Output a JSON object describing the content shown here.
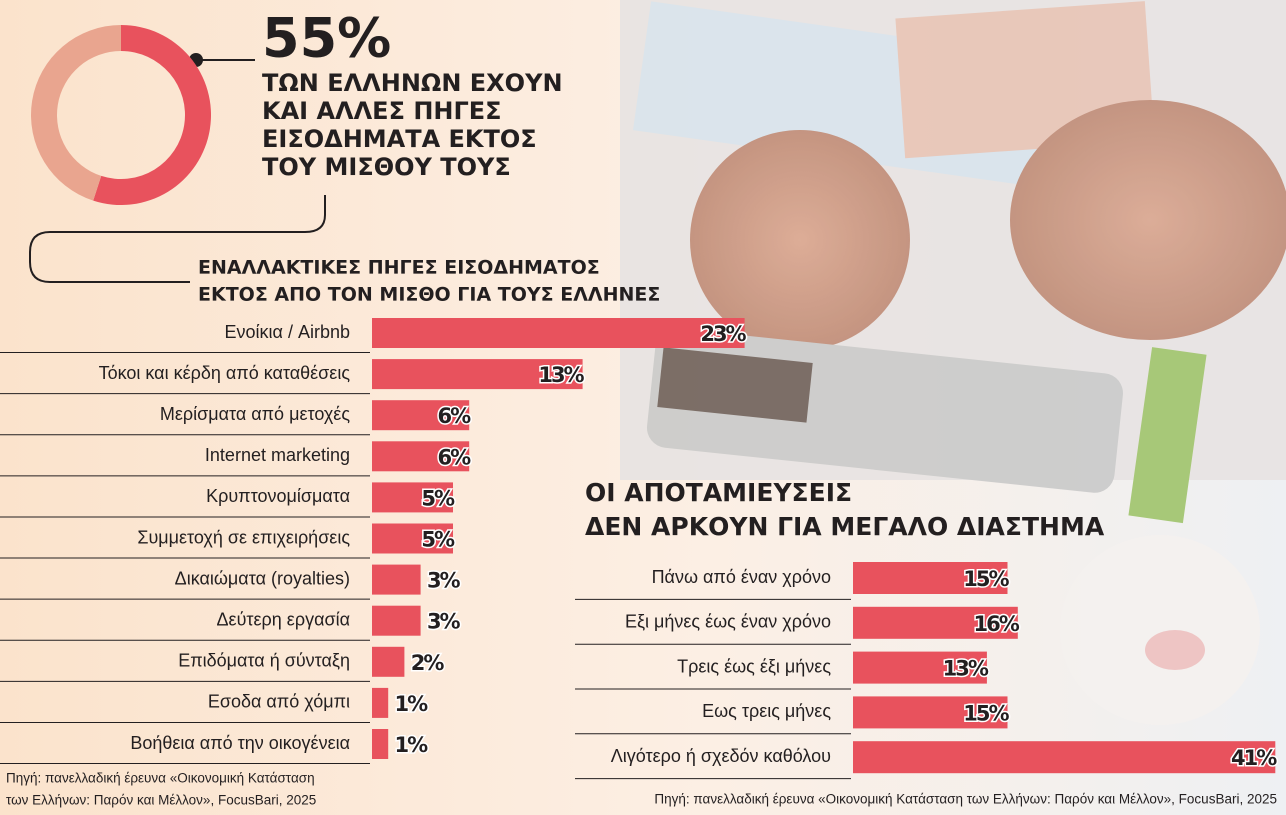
{
  "chart_data": [
    {
      "type": "pie",
      "title": "55%",
      "subtitle": [
        "ΤΩΝ ΕΛΛΗΝΩΝ ΕΧΟΥΝ",
        "ΚΑΙ ΑΛΛΕΣ ΠΗΓΕΣ",
        "ΕΙΣΟΔΗΜΑΤΑ ΕΚΤΟΣ",
        "ΤΟΥ ΜΙΣΘΟΥ ΤΟΥΣ"
      ],
      "values": [
        55,
        45
      ],
      "colors": [
        "#e8525d",
        "#e9a58f"
      ]
    },
    {
      "type": "bar",
      "title": [
        "ΕΝΑΛΛΑΚΤΙΚΕΣ ΠΗΓΕΣ ΕΙΣΟΔΗΜΑΤΟΣ",
        "ΕΚΤΟΣ ΑΠΟ ΤΟΝ ΜΙΣΘΟ ΓΙΑ ΤΟΥΣ ΕΛΛΗΝΕΣ"
      ],
      "categories": [
        "Ενοίκια / Airbnb",
        "Τόκοι και κέρδη από καταθέσεις",
        "Μερίσματα από μετοχές",
        "Internet marketing",
        "Κρυπτονομίσματα",
        "Συμμετοχή σε επιχειρήσεις",
        "Δικαιώματα (royalties)",
        "Δεύτερη εργασία",
        "Επιδόματα ή σύνταξη",
        "Εσοδα από χόμπι",
        "Βοήθεια από την οικογένεια"
      ],
      "values": [
        23,
        13,
        6,
        6,
        5,
        5,
        3,
        3,
        2,
        1,
        1
      ],
      "value_labels": [
        "23%",
        "13%",
        "6%",
        "6%",
        "5%",
        "5%",
        "3%",
        "3%",
        "2%",
        "1%",
        "1%"
      ],
      "color": "#e8525d",
      "source": [
        "Πηγή: πανελλαδική έρευνα «Οικονομική Κατάσταση",
        "των Ελλήνων: Παρόν και Μέλλον», FocusBari, 2025"
      ]
    },
    {
      "type": "bar",
      "title": [
        "ΟΙ ΑΠΟΤΑΜΙΕΥΣΕΙΣ",
        "ΔΕΝ ΑΡΚΟΥΝ ΓΙΑ ΜΕΓΑΛΟ ΔΙΑΣΤΗΜΑ"
      ],
      "categories": [
        "Πάνω από έναν χρόνο",
        "Εξι μήνες έως έναν χρόνο",
        "Τρεις έως έξι μήνες",
        "Εως τρεις μήνες",
        "Λιγότερο ή σχεδόν καθόλου"
      ],
      "values": [
        15,
        16,
        13,
        15,
        41
      ],
      "value_labels": [
        "15%",
        "16%",
        "13%",
        "15%",
        "41%"
      ],
      "color": "#e8525d",
      "source": [
        "Πηγή: πανελλαδική έρευνα «Οικονομική Κατάσταση των Ελλήνων: Παρόν και Μέλλον», FocusBari, 2025"
      ]
    }
  ]
}
